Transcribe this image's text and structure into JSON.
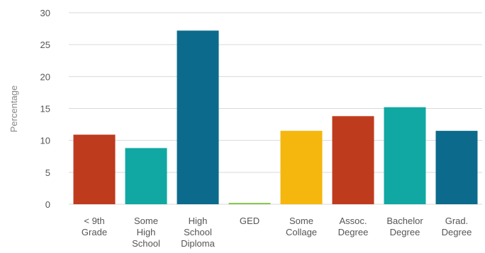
{
  "chart_data": {
    "type": "bar",
    "categories": [
      [
        "< 9th",
        "Grade"
      ],
      [
        "Some",
        "High",
        "School"
      ],
      [
        "High",
        "School",
        "Diploma"
      ],
      [
        "GED"
      ],
      [
        "Some",
        "Collage"
      ],
      [
        "Assoc.",
        "Degree"
      ],
      [
        "Bachelor",
        "Degree"
      ],
      [
        "Grad.",
        "Degree"
      ]
    ],
    "values": [
      10.9,
      8.8,
      27.2,
      0.2,
      11.5,
      13.8,
      15.2,
      11.5
    ],
    "colors": [
      "#bf3b1e",
      "#11a8a3",
      "#0c6b8c",
      "#7cc242",
      "#f5b70e",
      "#bf3b1e",
      "#11a8a3",
      "#0c6b8c"
    ],
    "title": "",
    "xlabel": "",
    "ylabel": "Percentage",
    "ylim": [
      0,
      30
    ],
    "yticks": [
      0,
      5,
      10,
      15,
      20,
      25,
      30
    ],
    "grid": true,
    "legend": "none"
  }
}
